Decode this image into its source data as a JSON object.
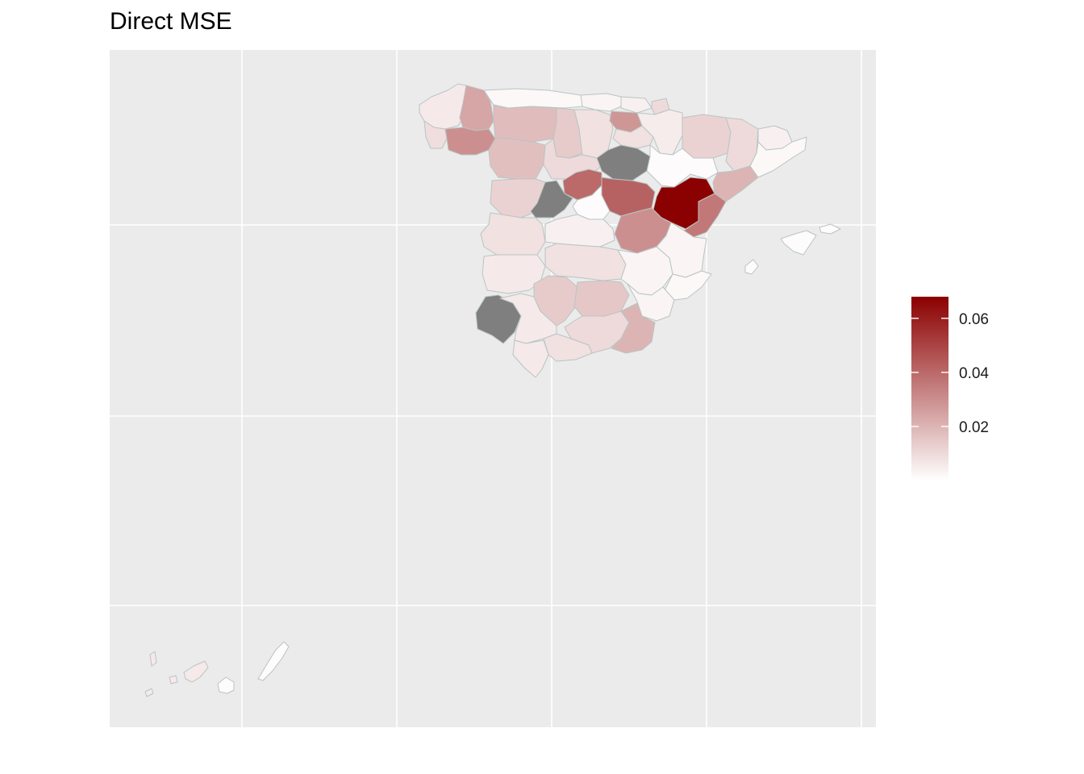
{
  "title": "Direct MSE",
  "colors": {
    "panel_background": "#ebebeb",
    "grid": "#ffffff",
    "province_border": "#b9c4c4",
    "missing": "#7f7f7f",
    "scale_low": "#ffffff",
    "scale_high": "#8b0000"
  },
  "legend": {
    "title": "",
    "range": [
      0,
      0.068
    ],
    "ticks": [
      {
        "value": 0.02,
        "label": "0.02"
      },
      {
        "value": 0.04,
        "label": "0.04"
      },
      {
        "value": 0.06,
        "label": "0.06"
      }
    ]
  },
  "regions": [
    {
      "name": "A Coruña",
      "value": 0.006
    },
    {
      "name": "Lugo",
      "value": 0.024
    },
    {
      "name": "Asturias",
      "value": 0.002
    },
    {
      "name": "Cantabria",
      "value": 0.003
    },
    {
      "name": "Pontevedra",
      "value": 0.009
    },
    {
      "name": "Ourense",
      "value": 0.03
    },
    {
      "name": "León",
      "value": 0.018
    },
    {
      "name": "Palencia",
      "value": 0.014
    },
    {
      "name": "Burgos",
      "value": 0.008
    },
    {
      "name": "Vizcaya",
      "value": 0.004
    },
    {
      "name": "Guipúzcoa",
      "value": 0.01
    },
    {
      "name": "Álava",
      "value": 0.028
    },
    {
      "name": "Navarra",
      "value": 0.005
    },
    {
      "name": "La Rioja",
      "value": 0.008
    },
    {
      "name": "Huesca",
      "value": 0.012
    },
    {
      "name": "Lleida",
      "value": 0.01
    },
    {
      "name": "Girona",
      "value": 0.004
    },
    {
      "name": "Barcelona",
      "value": 0.002
    },
    {
      "name": "Zamora",
      "value": 0.017
    },
    {
      "name": "Valladolid",
      "value": 0.01
    },
    {
      "name": "Soria",
      "value": null
    },
    {
      "name": "Zaragoza",
      "value": 0.001
    },
    {
      "name": "Tarragona",
      "value": 0.02
    },
    {
      "name": "Segovia",
      "value": 0.04
    },
    {
      "name": "Salamanca",
      "value": 0.012
    },
    {
      "name": "Ávila",
      "value": null
    },
    {
      "name": "Madrid",
      "value": 0.001
    },
    {
      "name": "Guadalajara",
      "value": 0.042
    },
    {
      "name": "Teruel",
      "value": 0.068
    },
    {
      "name": "Castellón",
      "value": 0.036
    },
    {
      "name": "Cuenca",
      "value": 0.03
    },
    {
      "name": "Cáceres",
      "value": 0.008
    },
    {
      "name": "Toledo",
      "value": 0.004
    },
    {
      "name": "Valencia",
      "value": 0.003
    },
    {
      "name": "Badajoz",
      "value": 0.006
    },
    {
      "name": "Ciudad Real",
      "value": 0.008
    },
    {
      "name": "Albacete",
      "value": 0.003
    },
    {
      "name": "Alicante",
      "value": 0.002
    },
    {
      "name": "Huelva",
      "value": null
    },
    {
      "name": "Sevilla",
      "value": 0.006
    },
    {
      "name": "Córdoba",
      "value": 0.014
    },
    {
      "name": "Jaén",
      "value": 0.015
    },
    {
      "name": "Murcia",
      "value": 0.003
    },
    {
      "name": "Cádiz",
      "value": 0.006
    },
    {
      "name": "Málaga",
      "value": 0.008
    },
    {
      "name": "Granada",
      "value": 0.01
    },
    {
      "name": "Almería",
      "value": 0.02
    },
    {
      "name": "Baleares",
      "value": 0.001
    },
    {
      "name": "Tenerife",
      "value": 0.006
    },
    {
      "name": "Las Palmas",
      "value": 0.001
    }
  ]
}
